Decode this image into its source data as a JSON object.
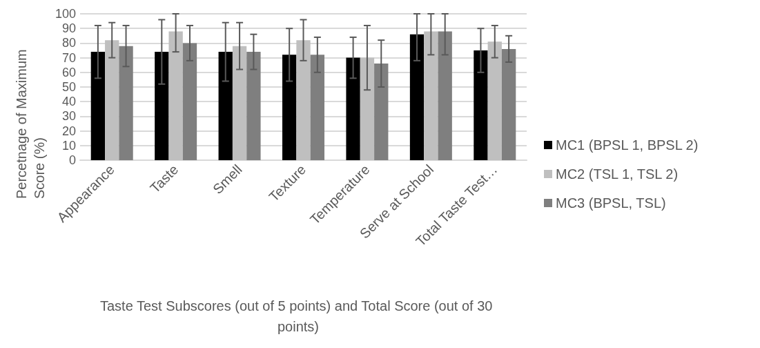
{
  "chart_data": {
    "type": "bar",
    "xlabel": "Taste Test Subscores (out of 5 points) and Total Score (out of 30 points)",
    "ylabel": "Percetnage of Maximum Score (%)",
    "categories": [
      "Appearance",
      "Taste",
      "Smell",
      "Texture",
      "Temperature",
      "Serve at School",
      "Total Taste Test…"
    ],
    "series": [
      {
        "name": "MC1 (BPSL 1, BPSL 2)",
        "color": "#000000",
        "values": [
          74,
          74,
          74,
          72,
          70,
          86,
          75
        ],
        "errors": [
          [
            56,
            92
          ],
          [
            52,
            96
          ],
          [
            54,
            94
          ],
          [
            54,
            90
          ],
          [
            56,
            84
          ],
          [
            68,
            100
          ],
          [
            60,
            90
          ]
        ]
      },
      {
        "name": "MC2 (TSL 1, TSL 2)",
        "color": "#bfbfbf",
        "values": [
          82,
          88,
          78,
          82,
          70,
          88,
          81
        ],
        "errors": [
          [
            70,
            94
          ],
          [
            74,
            100
          ],
          [
            62,
            94
          ],
          [
            68,
            96
          ],
          [
            48,
            92
          ],
          [
            72,
            100
          ],
          [
            70,
            92
          ]
        ]
      },
      {
        "name": "MC3 (BPSL, TSL)",
        "color": "#7f7f7f",
        "values": [
          78,
          80,
          74,
          72,
          66,
          88,
          76
        ],
        "errors": [
          [
            64,
            92
          ],
          [
            68,
            92
          ],
          [
            62,
            86
          ],
          [
            60,
            84
          ],
          [
            50,
            82
          ],
          [
            72,
            100
          ],
          [
            67,
            85
          ]
        ]
      }
    ],
    "ylim": [
      0,
      100
    ],
    "yticks": [
      0,
      10,
      20,
      30,
      40,
      50,
      60,
      70,
      80,
      90,
      100
    ],
    "grid": "y",
    "legend": "right"
  }
}
